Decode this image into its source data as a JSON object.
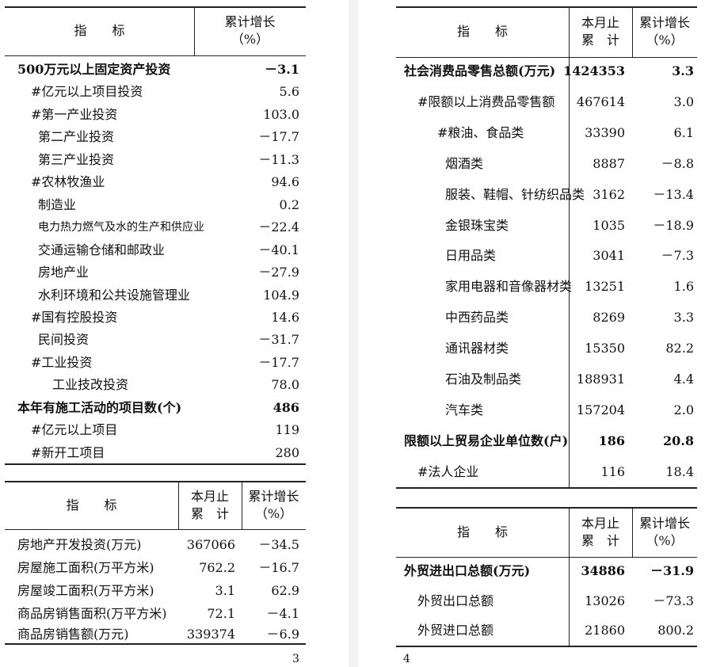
{
  "tables": [
    {
      "header": {
        "item": "指　　标",
        "cols": [
          [
            "累计增长",
            "（%）"
          ]
        ]
      },
      "rows": [
        [
          "500万元以上固定资产投资",
          "－3.1"
        ],
        [
          "#亿元以上项目投资",
          "5.6"
        ],
        [
          "#第一产业投资",
          "103.0"
        ],
        [
          "第二产业投资",
          "－17.7"
        ],
        [
          "第三产业投资",
          "－11.3"
        ],
        [
          "#农林牧渔业",
          "94.6"
        ],
        [
          "制造业",
          "0.2"
        ],
        [
          "电力热力燃气及水的生产和供应业",
          "－22.4"
        ],
        [
          "交通运输仓储和邮政业",
          "－40.1"
        ],
        [
          "房地产业",
          "－27.9"
        ],
        [
          "水利环境和公共设施管理业",
          "104.9"
        ],
        [
          "#国有控股投资",
          "14.6"
        ],
        [
          "民间投资",
          "－31.7"
        ],
        [
          "#工业投资",
          "－17.7"
        ],
        [
          "工业技改投资",
          "78.0"
        ],
        [
          "本年有施工活动的项目数(个)",
          "486"
        ],
        [
          "#亿元以上项目",
          "119"
        ],
        [
          "#新开工项目",
          "280"
        ]
      ]
    },
    {
      "header": {
        "item": "指　　标",
        "cols": [
          [
            "本月止",
            "累　计"
          ],
          [
            "累计增长",
            "（%）"
          ]
        ]
      },
      "rows": [
        [
          "房地产开发投资(万元)",
          "367066",
          "－34.5"
        ],
        [
          "房屋施工面积(万平方米)",
          "762.2",
          "－16.7"
        ],
        [
          "房屋竣工面积(万平方米)",
          "3.1",
          "62.9"
        ],
        [
          "商品房销售面积(万平方米)",
          "72.1",
          "－4.1"
        ],
        [
          "商品房销售额(万元)",
          "339374",
          "－6.9"
        ]
      ]
    },
    {
      "header": {
        "item": "指　　标",
        "cols": [
          [
            "本月止",
            "累　计"
          ],
          [
            "累计增长",
            "（%）"
          ]
        ]
      },
      "rows": [
        [
          "社会消费品零售总额(万元)",
          "1424353",
          "3.3"
        ],
        [
          "#限额以上消费品零售额",
          "467614",
          "3.0"
        ],
        [
          "#粮油、食品类",
          "33390",
          "6.1"
        ],
        [
          "烟酒类",
          "8887",
          "－8.8"
        ],
        [
          "服装、鞋帽、针纺织品类",
          "3162",
          "－13.4"
        ],
        [
          "金银珠宝类",
          "1035",
          "－18.9"
        ],
        [
          "日用品类",
          "3041",
          "－7.3"
        ],
        [
          "家用电器和音像器材类",
          "13251",
          "1.6"
        ],
        [
          "中西药品类",
          "8269",
          "3.3"
        ],
        [
          "通讯器材类",
          "15350",
          "82.2"
        ],
        [
          "石油及制品类",
          "188931",
          "4.4"
        ],
        [
          "汽车类",
          "157204",
          "2.0"
        ],
        [
          "限额以上贸易企业单位数(户)",
          "186",
          "20.8"
        ],
        [
          "#法人企业",
          "116",
          "18.4"
        ]
      ]
    },
    {
      "header": {
        "item": "指　　标",
        "cols": [
          [
            "本月止",
            "累　计"
          ],
          [
            "累计增长",
            "（%）"
          ]
        ]
      },
      "rows": [
        [
          "外贸进出口总额(万元)",
          "34886",
          "－31.9"
        ],
        [
          "外贸出口总额",
          "13026",
          "－73.3"
        ],
        [
          "外贸进口总额",
          "21860",
          "800.2"
        ]
      ]
    }
  ],
  "page_numbers": [
    "3",
    "4"
  ]
}
